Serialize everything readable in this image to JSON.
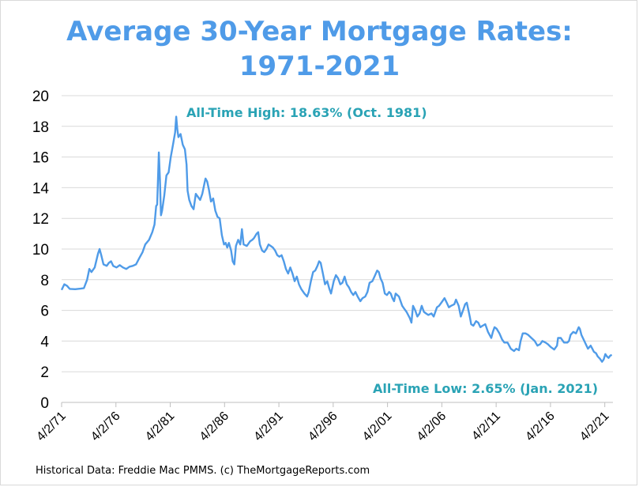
{
  "chart_data": {
    "type": "line",
    "title": "Average 30-Year Mortgage Rates:",
    "subtitle": "1971-2021",
    "xlabel": "",
    "ylabel": "",
    "ylim": [
      0,
      20
    ],
    "y_ticks": [
      "0",
      "2",
      "4",
      "6",
      "8",
      "10",
      "12",
      "14",
      "16",
      "18",
      "20"
    ],
    "x_range": [
      "1971-04-02",
      "2021-12-31"
    ],
    "x_ticks": [
      "4/2/71",
      "4/2/76",
      "4/2/81",
      "4/2/86",
      "4/2/91",
      "4/2/96",
      "4/2/01",
      "4/2/06",
      "4/2/11",
      "4/2/16",
      "4/2/21"
    ],
    "grid": "horizontal",
    "line_color": "#4f9be8",
    "annotation_color": "#2aa3b5",
    "series": [
      {
        "values_by_year": [
          [
            1971.25,
            7.33
          ],
          [
            1971.5,
            7.7
          ],
          [
            1971.75,
            7.6
          ],
          [
            1972.0,
            7.4
          ],
          [
            1972.5,
            7.38
          ],
          [
            1973.0,
            7.42
          ],
          [
            1973.3,
            7.45
          ],
          [
            1973.6,
            8.0
          ],
          [
            1973.8,
            8.7
          ],
          [
            1974.0,
            8.5
          ],
          [
            1974.3,
            8.8
          ],
          [
            1974.6,
            9.7
          ],
          [
            1974.75,
            10.0
          ],
          [
            1974.9,
            9.6
          ],
          [
            1975.1,
            9.0
          ],
          [
            1975.4,
            8.9
          ],
          [
            1975.6,
            9.1
          ],
          [
            1975.8,
            9.2
          ],
          [
            1976.0,
            8.9
          ],
          [
            1976.3,
            8.8
          ],
          [
            1976.6,
            8.95
          ],
          [
            1976.9,
            8.8
          ],
          [
            1977.2,
            8.7
          ],
          [
            1977.5,
            8.85
          ],
          [
            1977.8,
            8.9
          ],
          [
            1978.1,
            9.0
          ],
          [
            1978.4,
            9.4
          ],
          [
            1978.7,
            9.8
          ],
          [
            1978.95,
            10.3
          ],
          [
            1979.3,
            10.6
          ],
          [
            1979.6,
            11.1
          ],
          [
            1979.8,
            11.6
          ],
          [
            1979.95,
            12.8
          ],
          [
            1980.05,
            12.9
          ],
          [
            1980.2,
            16.3
          ],
          [
            1980.3,
            14.5
          ],
          [
            1980.4,
            12.2
          ],
          [
            1980.5,
            12.5
          ],
          [
            1980.7,
            13.5
          ],
          [
            1980.9,
            14.8
          ],
          [
            1981.1,
            15.0
          ],
          [
            1981.3,
            16.0
          ],
          [
            1981.5,
            16.8
          ],
          [
            1981.7,
            17.6
          ],
          [
            1981.8,
            18.63
          ],
          [
            1981.9,
            17.8
          ],
          [
            1982.0,
            17.3
          ],
          [
            1982.2,
            17.5
          ],
          [
            1982.4,
            16.8
          ],
          [
            1982.6,
            16.5
          ],
          [
            1982.75,
            15.5
          ],
          [
            1982.85,
            13.8
          ],
          [
            1983.0,
            13.2
          ],
          [
            1983.2,
            12.8
          ],
          [
            1983.4,
            12.6
          ],
          [
            1983.6,
            13.6
          ],
          [
            1983.8,
            13.4
          ],
          [
            1984.0,
            13.2
          ],
          [
            1984.2,
            13.6
          ],
          [
            1984.4,
            14.3
          ],
          [
            1984.5,
            14.6
          ],
          [
            1984.65,
            14.4
          ],
          [
            1984.8,
            13.9
          ],
          [
            1985.0,
            13.1
          ],
          [
            1985.2,
            13.3
          ],
          [
            1985.4,
            12.5
          ],
          [
            1985.6,
            12.1
          ],
          [
            1985.8,
            12.0
          ],
          [
            1986.0,
            10.9
          ],
          [
            1986.2,
            10.3
          ],
          [
            1986.35,
            10.4
          ],
          [
            1986.5,
            10.1
          ],
          [
            1986.65,
            10.4
          ],
          [
            1986.85,
            9.9
          ],
          [
            1987.0,
            9.2
          ],
          [
            1987.15,
            9.0
          ],
          [
            1987.3,
            10.2
          ],
          [
            1987.5,
            10.6
          ],
          [
            1987.7,
            10.3
          ],
          [
            1987.85,
            11.3
          ],
          [
            1988.0,
            10.3
          ],
          [
            1988.3,
            10.2
          ],
          [
            1988.6,
            10.5
          ],
          [
            1988.8,
            10.6
          ],
          [
            1988.95,
            10.7
          ],
          [
            1989.2,
            11.0
          ],
          [
            1989.35,
            11.1
          ],
          [
            1989.5,
            10.3
          ],
          [
            1989.7,
            9.9
          ],
          [
            1989.9,
            9.8
          ],
          [
            1990.1,
            10.0
          ],
          [
            1990.3,
            10.3
          ],
          [
            1990.5,
            10.2
          ],
          [
            1990.7,
            10.1
          ],
          [
            1990.9,
            9.9
          ],
          [
            1991.1,
            9.6
          ],
          [
            1991.3,
            9.5
          ],
          [
            1991.5,
            9.6
          ],
          [
            1991.7,
            9.2
          ],
          [
            1991.9,
            8.7
          ],
          [
            1992.1,
            8.4
          ],
          [
            1992.3,
            8.8
          ],
          [
            1992.5,
            8.4
          ],
          [
            1992.7,
            7.9
          ],
          [
            1992.9,
            8.2
          ],
          [
            1993.1,
            7.7
          ],
          [
            1993.3,
            7.4
          ],
          [
            1993.6,
            7.1
          ],
          [
            1993.85,
            6.9
          ],
          [
            1994.0,
            7.2
          ],
          [
            1994.2,
            7.9
          ],
          [
            1994.4,
            8.5
          ],
          [
            1994.6,
            8.6
          ],
          [
            1994.8,
            8.9
          ],
          [
            1994.95,
            9.2
          ],
          [
            1995.1,
            9.1
          ],
          [
            1995.3,
            8.4
          ],
          [
            1995.5,
            7.7
          ],
          [
            1995.7,
            7.9
          ],
          [
            1995.9,
            7.4
          ],
          [
            1996.05,
            7.1
          ],
          [
            1996.3,
            7.9
          ],
          [
            1996.5,
            8.3
          ],
          [
            1996.7,
            8.1
          ],
          [
            1996.9,
            7.7
          ],
          [
            1997.1,
            7.8
          ],
          [
            1997.3,
            8.2
          ],
          [
            1997.5,
            7.7
          ],
          [
            1997.7,
            7.5
          ],
          [
            1997.9,
            7.2
          ],
          [
            1998.1,
            7.0
          ],
          [
            1998.3,
            7.2
          ],
          [
            1998.5,
            6.9
          ],
          [
            1998.75,
            6.6
          ],
          [
            1998.95,
            6.8
          ],
          [
            1999.2,
            6.9
          ],
          [
            1999.4,
            7.2
          ],
          [
            1999.6,
            7.8
          ],
          [
            1999.85,
            7.9
          ],
          [
            2000.05,
            8.2
          ],
          [
            2000.3,
            8.6
          ],
          [
            2000.45,
            8.5
          ],
          [
            2000.6,
            8.1
          ],
          [
            2000.8,
            7.8
          ],
          [
            2001.0,
            7.1
          ],
          [
            2001.2,
            7.0
          ],
          [
            2001.4,
            7.2
          ],
          [
            2001.55,
            7.1
          ],
          [
            2001.7,
            6.8
          ],
          [
            2001.85,
            6.6
          ],
          [
            2002.0,
            7.1
          ],
          [
            2002.3,
            6.9
          ],
          [
            2002.6,
            6.3
          ],
          [
            2002.8,
            6.1
          ],
          [
            2003.0,
            5.9
          ],
          [
            2003.3,
            5.5
          ],
          [
            2003.45,
            5.2
          ],
          [
            2003.6,
            6.3
          ],
          [
            2003.8,
            6.0
          ],
          [
            2004.0,
            5.6
          ],
          [
            2004.2,
            5.8
          ],
          [
            2004.4,
            6.3
          ],
          [
            2004.6,
            5.9
          ],
          [
            2004.8,
            5.8
          ],
          [
            2005.0,
            5.7
          ],
          [
            2005.3,
            5.8
          ],
          [
            2005.5,
            5.6
          ],
          [
            2005.8,
            6.2
          ],
          [
            2006.0,
            6.3
          ],
          [
            2006.3,
            6.6
          ],
          [
            2006.5,
            6.8
          ],
          [
            2006.7,
            6.5
          ],
          [
            2006.9,
            6.2
          ],
          [
            2007.1,
            6.3
          ],
          [
            2007.4,
            6.4
          ],
          [
            2007.55,
            6.7
          ],
          [
            2007.8,
            6.3
          ],
          [
            2008.0,
            5.6
          ],
          [
            2008.2,
            6.0
          ],
          [
            2008.4,
            6.4
          ],
          [
            2008.55,
            6.5
          ],
          [
            2008.7,
            6.0
          ],
          [
            2008.85,
            5.5
          ],
          [
            2008.95,
            5.1
          ],
          [
            2009.15,
            5.0
          ],
          [
            2009.4,
            5.3
          ],
          [
            2009.6,
            5.2
          ],
          [
            2009.8,
            4.9
          ],
          [
            2010.0,
            5.0
          ],
          [
            2010.25,
            5.1
          ],
          [
            2010.5,
            4.6
          ],
          [
            2010.8,
            4.2
          ],
          [
            2010.95,
            4.6
          ],
          [
            2011.1,
            4.9
          ],
          [
            2011.3,
            4.8
          ],
          [
            2011.55,
            4.5
          ],
          [
            2011.8,
            4.1
          ],
          [
            2012.0,
            3.9
          ],
          [
            2012.3,
            3.9
          ],
          [
            2012.6,
            3.5
          ],
          [
            2012.9,
            3.35
          ],
          [
            2013.1,
            3.5
          ],
          [
            2013.35,
            3.4
          ],
          [
            2013.5,
            4.0
          ],
          [
            2013.7,
            4.5
          ],
          [
            2013.95,
            4.5
          ],
          [
            2014.2,
            4.4
          ],
          [
            2014.5,
            4.2
          ],
          [
            2014.8,
            4.0
          ],
          [
            2015.05,
            3.7
          ],
          [
            2015.3,
            3.8
          ],
          [
            2015.5,
            4.0
          ],
          [
            2015.8,
            3.9
          ],
          [
            2016.0,
            3.8
          ],
          [
            2016.3,
            3.6
          ],
          [
            2016.6,
            3.45
          ],
          [
            2016.85,
            3.7
          ],
          [
            2016.95,
            4.2
          ],
          [
            2017.2,
            4.2
          ],
          [
            2017.5,
            3.9
          ],
          [
            2017.8,
            3.9
          ],
          [
            2017.95,
            4.0
          ],
          [
            2018.1,
            4.4
          ],
          [
            2018.35,
            4.6
          ],
          [
            2018.6,
            4.5
          ],
          [
            2018.85,
            4.9
          ],
          [
            2018.95,
            4.8
          ],
          [
            2019.1,
            4.4
          ],
          [
            2019.3,
            4.1
          ],
          [
            2019.5,
            3.8
          ],
          [
            2019.7,
            3.5
          ],
          [
            2019.95,
            3.7
          ],
          [
            2020.1,
            3.5
          ],
          [
            2020.25,
            3.3
          ],
          [
            2020.45,
            3.2
          ],
          [
            2020.6,
            3.0
          ],
          [
            2020.8,
            2.85
          ],
          [
            2021.0,
            2.65
          ],
          [
            2021.15,
            2.8
          ],
          [
            2021.3,
            3.15
          ],
          [
            2021.45,
            3.0
          ],
          [
            2021.6,
            2.9
          ],
          [
            2021.75,
            3.05
          ],
          [
            2021.9,
            3.1
          ]
        ]
      }
    ],
    "annotations": [
      {
        "text": "All-Time High: 18.63% (Oct. 1981)"
      },
      {
        "text": "All-Time Low: 2.65% (Jan. 2021)"
      }
    ]
  },
  "footer": "Historical Data: Freddie Mac PMMS. (c) TheMortgageReports.com"
}
